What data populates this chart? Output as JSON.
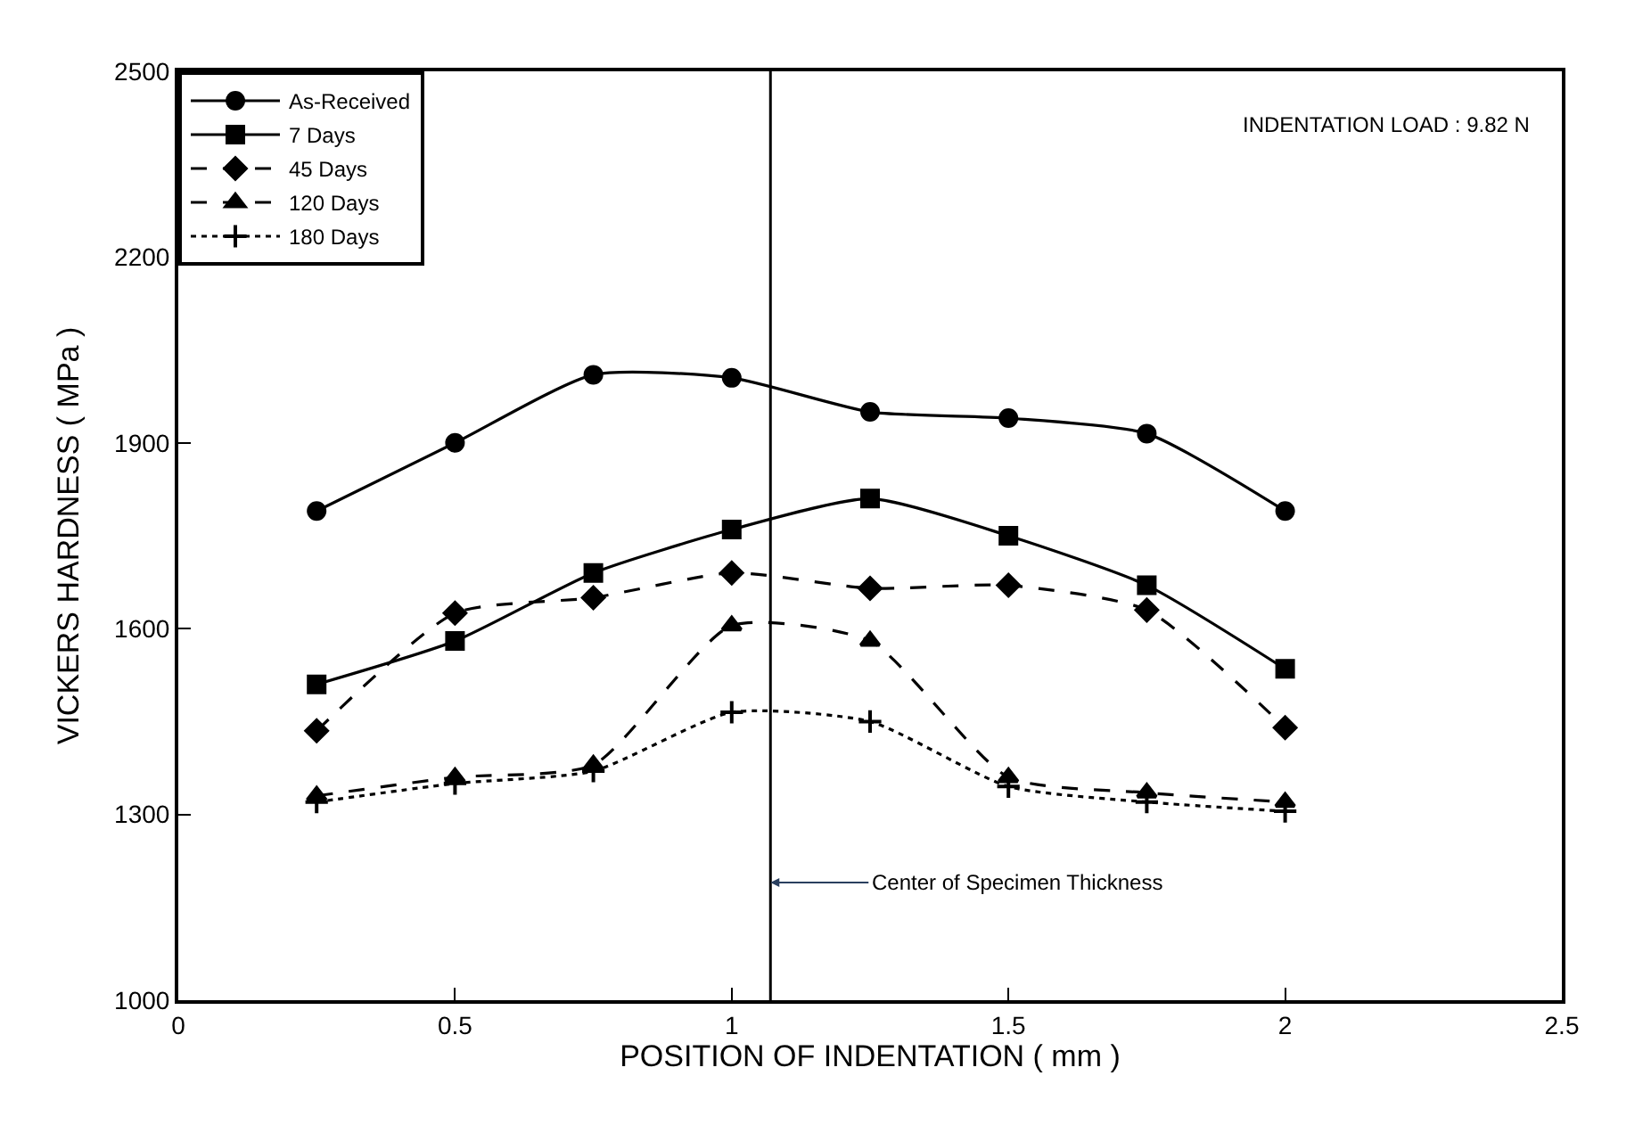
{
  "chart_data": {
    "type": "line",
    "xlabel": "POSITION OF INDENTATION ( mm )",
    "ylabel": "VICKERS HARDNESS ( MPa )",
    "x": [
      0.25,
      0.5,
      0.75,
      1.0,
      1.25,
      1.5,
      1.75,
      2.0
    ],
    "series": [
      {
        "name": "As-Received",
        "color": "#000000",
        "marker": "circle",
        "line_style": "solid",
        "values": [
          1790,
          1900,
          2010,
          2005,
          1950,
          1940,
          1915,
          1790
        ]
      },
      {
        "name": "7 Days",
        "color": "#000000",
        "marker": "square",
        "line_style": "solid",
        "values": [
          1510,
          1580,
          1690,
          1760,
          1810,
          1750,
          1670,
          1535
        ]
      },
      {
        "name": "45 Days",
        "color": "#000000",
        "marker": "diamond",
        "line_style": "dashed",
        "values": [
          1435,
          1625,
          1650,
          1690,
          1665,
          1670,
          1630,
          1440
        ]
      },
      {
        "name": "120 Days",
        "color": "#000000",
        "marker": "triangle",
        "line_style": "dashed",
        "values": [
          1330,
          1360,
          1380,
          1605,
          1580,
          1360,
          1335,
          1320
        ]
      },
      {
        "name": "180 Days",
        "color": "#000000",
        "marker": "cross",
        "line_style": "dotted",
        "values": [
          1320,
          1350,
          1370,
          1465,
          1450,
          1345,
          1320,
          1305
        ]
      }
    ],
    "xlim": [
      0,
      2.5
    ],
    "xticks": [
      0,
      0.5,
      1,
      1.5,
      2,
      2.5
    ],
    "ylim": [
      1000,
      2500
    ],
    "yticks": [
      1000,
      1300,
      1600,
      1900,
      2200,
      2500
    ],
    "ref_lines": [
      {
        "axis": "x",
        "value": 1.07,
        "label": "Center of Specimen Thickness",
        "color": "#000000",
        "line_style": "solid"
      }
    ],
    "annotations": [
      "INDENTATION LOAD : 9.82 N"
    ],
    "legend": "top left"
  }
}
